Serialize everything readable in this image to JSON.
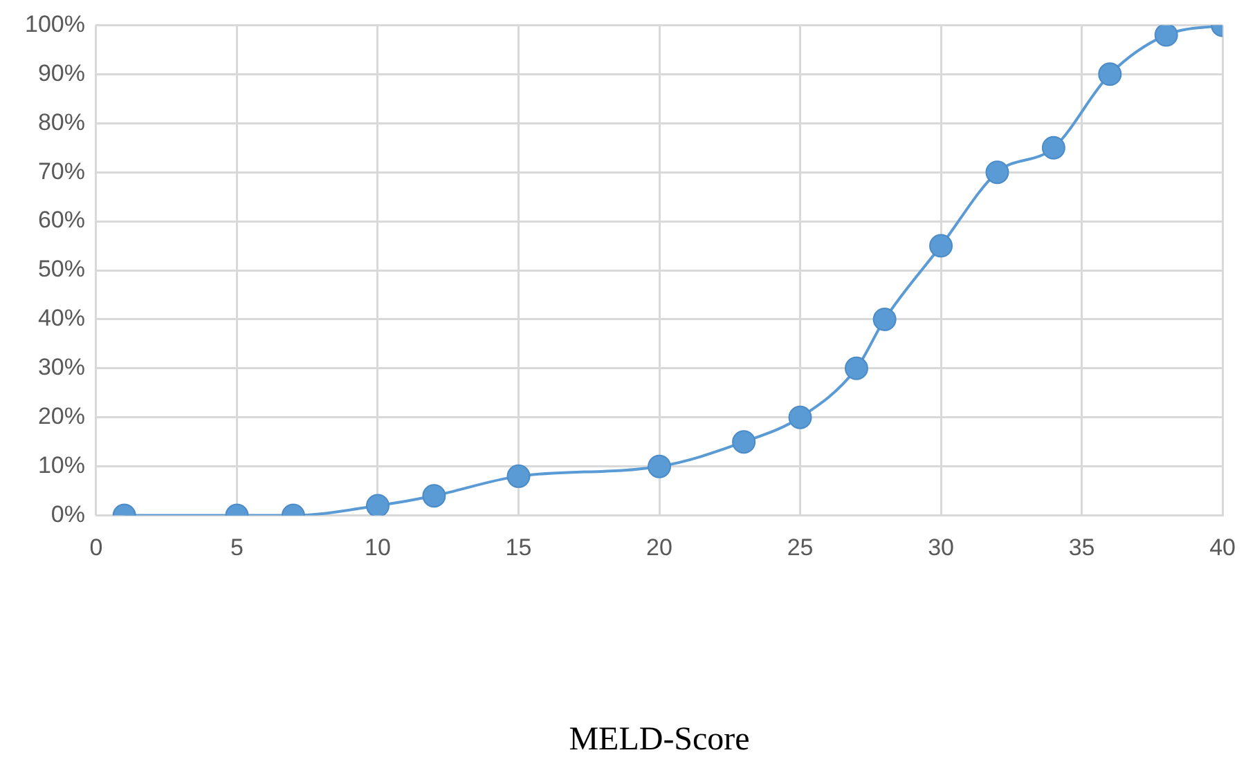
{
  "chart_data": {
    "type": "line",
    "xlabel": "MELD-Score",
    "x": [
      1,
      5,
      7,
      10,
      12,
      15,
      20,
      23,
      25,
      27,
      28,
      30,
      32,
      34,
      36,
      38,
      40
    ],
    "series": [
      {
        "color": "#5b9bd5",
        "values": [
          0,
          0,
          0,
          2,
          4,
          8,
          10,
          15,
          20,
          30,
          40,
          55,
          70,
          75,
          90,
          98,
          100
        ]
      }
    ],
    "xlim": [
      0,
      40
    ],
    "xticks": [
      0,
      5,
      10,
      15,
      20,
      25,
      30,
      35,
      40
    ],
    "ylim": [
      0,
      100
    ],
    "yticks": [
      {
        "value": 0,
        "label": "0%"
      },
      {
        "value": 10,
        "label": "10%"
      },
      {
        "value": 20,
        "label": "20%"
      },
      {
        "value": 30,
        "label": "30%"
      },
      {
        "value": 40,
        "label": "40%"
      },
      {
        "value": 50,
        "label": "50%"
      },
      {
        "value": 60,
        "label": "60%"
      },
      {
        "value": 70,
        "label": "70%"
      },
      {
        "value": 80,
        "label": "80%"
      },
      {
        "value": 90,
        "label": "90%"
      },
      {
        "value": 100,
        "label": "100%"
      }
    ],
    "grid": true,
    "marker": "circle",
    "legend": false
  }
}
